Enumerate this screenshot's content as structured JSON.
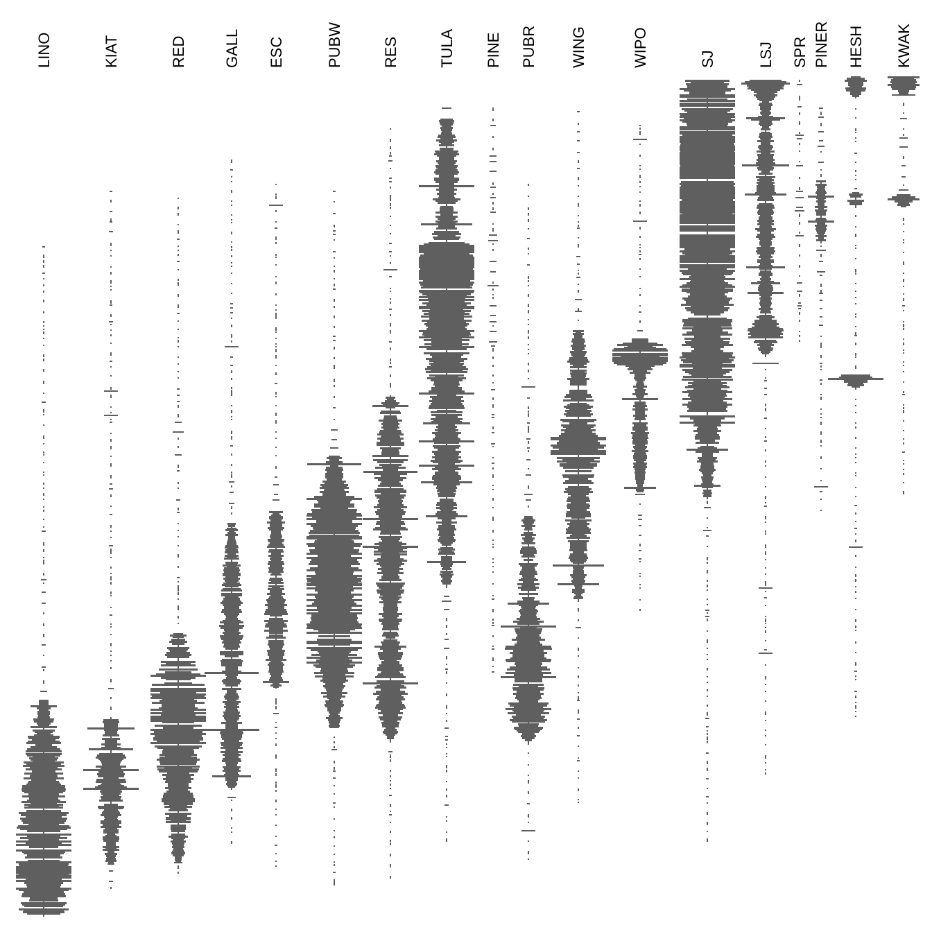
{
  "chart_data": {
    "type": "bar",
    "orientation": "centered-horizontal-bars (kite/battleship plot)",
    "grid": false,
    "legend": "none",
    "bar_color": "#5f5f5f",
    "title": "",
    "xlabel": "",
    "ylabel": "",
    "columns": [
      "LINO",
      "KIAT",
      "RED",
      "GALL",
      "ESC",
      "PUBW",
      "RES",
      "TULA",
      "PINE",
      "PUBR",
      "WING",
      "WIPO",
      "SJ",
      "LSJ",
      "SPR",
      "PINER",
      "HESH",
      "KWAK"
    ]
  }
}
